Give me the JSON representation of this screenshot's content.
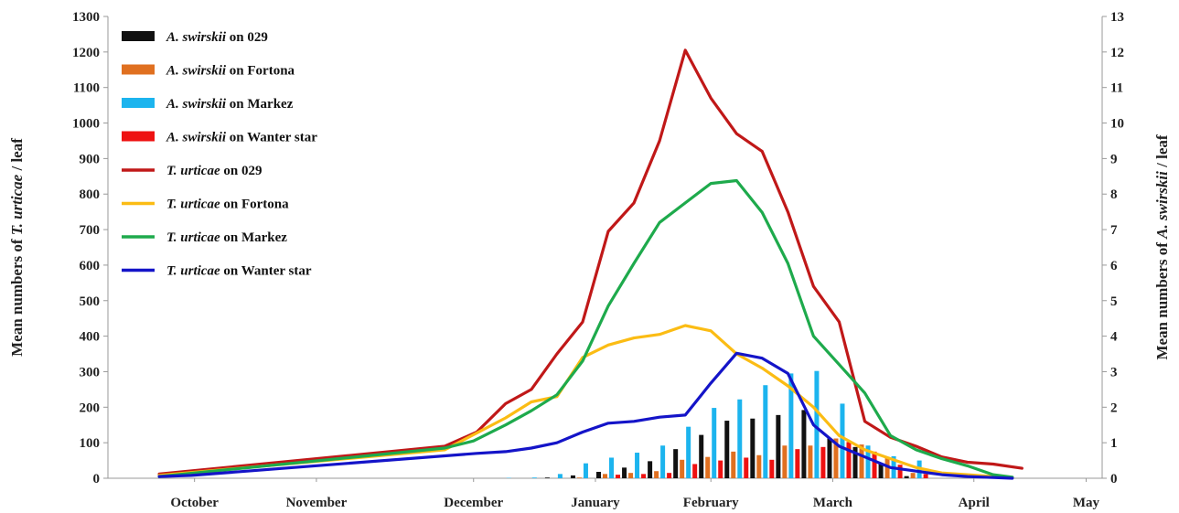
{
  "chart_data": {
    "type": "bar+line",
    "title": "",
    "ylabel_left": {
      "prefix": "Mean numbers of ",
      "italic": "T. urticae",
      "suffix": " / leaf"
    },
    "ylabel_right": {
      "prefix": "Mean numbers of ",
      "italic": "A. swirskii",
      "suffix": " / leaf"
    },
    "ylim_left": [
      0,
      1300
    ],
    "ylim_right": [
      0,
      13
    ],
    "yticks_left": [
      "0",
      "100",
      "200",
      "300",
      "400",
      "500",
      "600",
      "700",
      "800",
      "900",
      "1000",
      "1100",
      "1200",
      "1300"
    ],
    "yticks_right": [
      "0",
      "1",
      "2",
      "3",
      "4",
      "5",
      "6",
      "7",
      "8",
      "9",
      "10",
      "11",
      "12",
      "13"
    ],
    "xlim": [
      0,
      31
    ],
    "month_labels": [
      {
        "label": "October",
        "x": 2.7
      },
      {
        "label": "November",
        "x": 6.5
      },
      {
        "label": "December",
        "x": 11.4
      },
      {
        "label": "January",
        "x": 15.2
      },
      {
        "label": "February",
        "x": 18.8
      },
      {
        "label": "March",
        "x": 22.6
      },
      {
        "label": "April",
        "x": 27.0
      },
      {
        "label": "May",
        "x": 30.5
      }
    ],
    "grid": false,
    "legend_position": "top-left",
    "legend": [
      {
        "italic": "A. swirskii",
        "rest": " on 029",
        "kind": "bar",
        "color": "#111111"
      },
      {
        "italic": "A. swirskii",
        "rest": " on Fortona",
        "kind": "bar",
        "color": "#E07020"
      },
      {
        "italic": "A. swirskii",
        "rest": " on Markez",
        "kind": "bar",
        "color": "#1CB4EE"
      },
      {
        "italic": "A. swirskii",
        "rest": " on Wanter star",
        "kind": "bar",
        "color": "#EE1111"
      },
      {
        "italic": "T. urticae",
        "rest": " on 029",
        "kind": "line",
        "color": "#C01818"
      },
      {
        "italic": "T. urticae",
        "rest": " on Fortona",
        "kind": "line",
        "color": "#FBBC14"
      },
      {
        "italic": "T. urticae",
        "rest": " on Markez",
        "kind": "line",
        "color": "#1EAA4C"
      },
      {
        "italic": "T. urticae",
        "rest": " on Wanter star",
        "kind": "line",
        "color": "#1414C8"
      }
    ],
    "bar_x": [
      12.4,
      13.2,
      14.0,
      14.8,
      15.6,
      16.4,
      17.2,
      18.0,
      18.8,
      19.6,
      20.4,
      21.2,
      22.0,
      22.8,
      23.6,
      24.4,
      25.2,
      26.0,
      26.8
    ],
    "bar_series": [
      {
        "name": "A. swirskii on 029",
        "color": "#111111",
        "axis": "right",
        "values": [
          0.0,
          0.0,
          0.02,
          0.08,
          0.18,
          0.3,
          0.48,
          0.82,
          1.22,
          1.62,
          1.68,
          1.78,
          1.92,
          1.12,
          0.88,
          0.42,
          0.06,
          0.0,
          0.0
        ]
      },
      {
        "name": "A. swirskii on Fortona",
        "color": "#E07020",
        "axis": "right",
        "values": [
          0.0,
          0.0,
          0.0,
          0.02,
          0.12,
          0.15,
          0.2,
          0.52,
          0.6,
          0.75,
          0.65,
          0.92,
          0.92,
          1.12,
          0.95,
          0.6,
          0.15,
          0.0,
          0.0
        ]
      },
      {
        "name": "A. swirskii on Markez",
        "color": "#1CB4EE",
        "axis": "right",
        "values": [
          0.01,
          0.02,
          0.12,
          0.42,
          0.58,
          0.72,
          0.92,
          1.45,
          1.98,
          2.22,
          2.62,
          2.95,
          3.02,
          2.1,
          0.92,
          0.62,
          0.5,
          0.0,
          0.0
        ]
      },
      {
        "name": "A. swirskii on Wanter star",
        "color": "#EE1111",
        "axis": "right",
        "values": [
          0.0,
          0.0,
          0.0,
          0.0,
          0.1,
          0.12,
          0.15,
          0.4,
          0.5,
          0.58,
          0.52,
          0.82,
          0.88,
          1.02,
          0.75,
          0.38,
          0.12,
          0.0,
          0.0
        ]
      }
    ],
    "line_series": [
      {
        "name": "T. urticae on 029",
        "color": "#C01818",
        "axis": "left",
        "x": [
          1.6,
          10.5,
          11.5,
          12.4,
          13.2,
          14.0,
          14.8,
          15.6,
          16.4,
          17.2,
          18.0,
          18.8,
          19.6,
          20.4,
          21.2,
          22.0,
          22.8,
          23.6,
          24.4,
          25.2,
          26.0,
          26.8,
          27.6,
          28.5
        ],
        "y": [
          12,
          90,
          130,
          210,
          250,
          350,
          440,
          695,
          775,
          950,
          1205,
          1070,
          970,
          920,
          750,
          540,
          440,
          160,
          115,
          90,
          60,
          45,
          40,
          28
        ]
      },
      {
        "name": "T. urticae on Fortona",
        "color": "#FBBC14",
        "axis": "left",
        "x": [
          1.6,
          10.5,
          12.4,
          13.2,
          14.0,
          14.8,
          15.6,
          16.4,
          17.2,
          18.0,
          18.8,
          19.6,
          20.4,
          21.2,
          22.0,
          22.8,
          23.6,
          24.4,
          25.2,
          26.0,
          26.8,
          27.6,
          28.2
        ],
        "y": [
          8,
          80,
          170,
          215,
          230,
          340,
          375,
          395,
          405,
          430,
          415,
          350,
          310,
          260,
          200,
          120,
          80,
          55,
          30,
          15,
          10,
          5,
          2
        ]
      },
      {
        "name": "T. urticae on Markez",
        "color": "#1EAA4C",
        "axis": "left",
        "x": [
          1.6,
          10.5,
          11.4,
          12.4,
          13.2,
          14.0,
          14.8,
          15.6,
          16.4,
          17.2,
          18.0,
          18.8,
          19.6,
          20.4,
          21.2,
          22.0,
          22.8,
          23.6,
          24.4,
          25.2,
          26.0,
          26.8,
          27.6,
          28.2
        ],
        "y": [
          5,
          85,
          105,
          150,
          190,
          235,
          330,
          485,
          605,
          720,
          775,
          830,
          838,
          748,
          605,
          400,
          320,
          240,
          120,
          80,
          55,
          35,
          10,
          3
        ]
      },
      {
        "name": "T. urticae on Wanter star",
        "color": "#1414C8",
        "axis": "left",
        "x": [
          1.6,
          2.6,
          11.5,
          12.4,
          13.2,
          14.0,
          14.8,
          15.6,
          16.4,
          17.2,
          18.0,
          18.8,
          19.6,
          20.4,
          21.2,
          22.0,
          22.8,
          23.6,
          24.4,
          25.2,
          26.0,
          26.8,
          27.6,
          28.2
        ],
        "y": [
          5,
          8,
          70,
          75,
          85,
          100,
          130,
          155,
          160,
          172,
          178,
          268,
          352,
          338,
          295,
          150,
          90,
          60,
          30,
          20,
          10,
          5,
          2,
          0
        ]
      }
    ]
  }
}
